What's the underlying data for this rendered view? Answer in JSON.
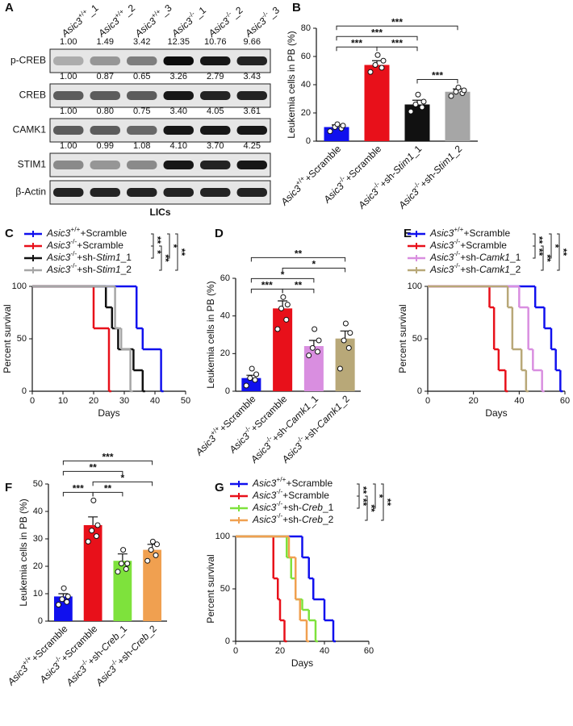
{
  "chart_data": [
    {
      "type": "blot",
      "panel": "A",
      "lanes": [
        "Asic3+/+_1",
        "Asic3+/+_2",
        "Asic3+/+_3",
        "Asic3-/-_1",
        "Asic3-/-_2",
        "Asic3-/-_3"
      ],
      "quant_rows": [
        [
          "1.00",
          "1.49",
          "3.42",
          "12.35",
          "10.76",
          "9.66"
        ],
        [
          "1.00",
          "0.87",
          "0.65",
          "3.26",
          "2.79",
          "3.43"
        ],
        [
          "1.00",
          "0.80",
          "0.75",
          "3.40",
          "4.05",
          "3.61"
        ],
        [
          "1.00",
          "0.99",
          "1.08",
          "4.10",
          "3.70",
          "4.25"
        ]
      ],
      "bands": [
        "p-CREB",
        "CREB",
        "CAMK1",
        "STIM1",
        "β-Actin"
      ],
      "xlabel": "LICs"
    },
    {
      "type": "bar",
      "panel": "B",
      "ylabel": "Leukemia cells in PB (%)",
      "categories": [
        "Asic3+/++Scramble",
        "Asic3-/-+Scramble",
        "Asic3-/-+sh-Stim1_1",
        "Asic3-/-+sh-Stim1_2"
      ],
      "values": [
        10,
        54,
        26,
        35
      ],
      "errors": [
        1.5,
        3,
        3,
        2
      ],
      "colors": [
        "#1010ee",
        "#e8101a",
        "#111111",
        "#a6a6a6"
      ],
      "points": [
        [
          7,
          9,
          10,
          11,
          12
        ],
        [
          49,
          52,
          54,
          57,
          61
        ],
        [
          21,
          24,
          26,
          28,
          33
        ],
        [
          32,
          34,
          35,
          36,
          38
        ]
      ],
      "ylim": [
        0,
        80
      ],
      "yticks": [
        0,
        20,
        40,
        60,
        80
      ],
      "comparisons": [
        {
          "pair": [
            0,
            1
          ],
          "label": "***"
        },
        {
          "pair": [
            1,
            2
          ],
          "label": "***"
        },
        {
          "pair": [
            2,
            3
          ],
          "label": "***"
        },
        {
          "pair": [
            0,
            2
          ],
          "label": "***"
        },
        {
          "pair": [
            0,
            3
          ],
          "label": "***"
        }
      ]
    },
    {
      "type": "survival",
      "panel": "C",
      "xlabel": "Days",
      "ylabel": "Percent survival",
      "xlim": [
        0,
        50
      ],
      "xticks": [
        0,
        10,
        20,
        30,
        40,
        50
      ],
      "ylim": [
        0,
        100
      ],
      "yticks": [
        0,
        50,
        100
      ],
      "series": [
        {
          "name": "Asic3+/++Scramble",
          "color": "#1010ee",
          "x": [
            0,
            34,
            36,
            42
          ],
          "values": [
            100,
            60,
            40,
            0
          ]
        },
        {
          "name": "Asic3-/-+Scramble",
          "color": "#e8101a",
          "x": [
            0,
            20,
            25
          ],
          "values": [
            100,
            60,
            0
          ]
        },
        {
          "name": "Asic3-/-+sh-Stim1_1",
          "color": "#111111",
          "x": [
            0,
            24,
            26,
            28,
            33,
            36
          ],
          "values": [
            100,
            80,
            60,
            40,
            20,
            0
          ]
        },
        {
          "name": "Asic3-/-+sh-Stim1_2",
          "color": "#a6a6a6",
          "x": [
            0,
            27,
            29,
            32
          ],
          "values": [
            100,
            60,
            40,
            0
          ]
        }
      ],
      "comparisons": [
        {
          "pair": [
            0,
            1
          ],
          "label": "**"
        },
        {
          "pair": [
            1,
            2
          ],
          "label": "*"
        },
        {
          "pair": [
            1,
            3
          ],
          "label": "**"
        },
        {
          "pair": [
            0,
            2
          ],
          "label": "*"
        },
        {
          "pair": [
            0,
            3
          ],
          "label": "**"
        }
      ]
    },
    {
      "type": "bar",
      "panel": "D",
      "ylabel": "Leukemia cells in PB (%)",
      "categories": [
        "Asic3+/++Scramble",
        "Asic3-/-+Scramble",
        "Asic3-/-+sh-Camk1_1",
        "Asic3-/-+sh-Camk1_2"
      ],
      "values": [
        7,
        44,
        24,
        28
      ],
      "errors": [
        1.5,
        4,
        3,
        4
      ],
      "colors": [
        "#1010ee",
        "#e8101a",
        "#d98ee0",
        "#b8a878"
      ],
      "points": [
        [
          3,
          6,
          7,
          9,
          12
        ],
        [
          33,
          38,
          44,
          46,
          50
        ],
        [
          19,
          21,
          23,
          27,
          33
        ],
        [
          12,
          23,
          27,
          31,
          36
        ]
      ],
      "ylim": [
        0,
        60
      ],
      "yticks": [
        0,
        20,
        40,
        60
      ],
      "comparisons": [
        {
          "pair": [
            0,
            1
          ],
          "label": "***"
        },
        {
          "pair": [
            1,
            2
          ],
          "label": "**"
        },
        {
          "pair": [
            0,
            2
          ],
          "label": "*"
        },
        {
          "pair": [
            1,
            3
          ],
          "label": "*"
        },
        {
          "pair": [
            0,
            3
          ],
          "label": "**"
        }
      ]
    },
    {
      "type": "survival",
      "panel": "E",
      "xlabel": "Days",
      "ylabel": "Percent survival",
      "xlim": [
        0,
        60
      ],
      "xticks": [
        0,
        20,
        40,
        60
      ],
      "ylim": [
        0,
        100
      ],
      "yticks": [
        0,
        50,
        100
      ],
      "series": [
        {
          "name": "Asic3+/++Scramble",
          "color": "#1010ee",
          "x": [
            0,
            47,
            51,
            54,
            56,
            58
          ],
          "values": [
            100,
            80,
            60,
            40,
            20,
            0
          ]
        },
        {
          "name": "Asic3-/-+Scramble",
          "color": "#e8101a",
          "x": [
            0,
            27,
            29,
            31,
            34
          ],
          "values": [
            100,
            80,
            40,
            20,
            0
          ]
        },
        {
          "name": "Asic3-/-+sh-Camk1_1",
          "color": "#d98ee0",
          "x": [
            0,
            40,
            44,
            46,
            50
          ],
          "values": [
            100,
            80,
            40,
            20,
            0
          ]
        },
        {
          "name": "Asic3-/-+sh-Camk1_2",
          "color": "#b8a878",
          "x": [
            0,
            35,
            37,
            41,
            43
          ],
          "values": [
            100,
            80,
            40,
            20,
            0
          ]
        }
      ],
      "comparisons": [
        {
          "pair": [
            0,
            1
          ],
          "label": "**"
        },
        {
          "pair": [
            1,
            2
          ],
          "label": "**"
        },
        {
          "pair": [
            1,
            3
          ],
          "label": "**"
        },
        {
          "pair": [
            0,
            2
          ],
          "label": "*"
        },
        {
          "pair": [
            0,
            3
          ],
          "label": "**"
        }
      ]
    },
    {
      "type": "bar",
      "panel": "F",
      "ylabel": "Leukemia cells in PB (%)",
      "categories": [
        "Asic3+/++Scramble",
        "Asic3-/-+Scramble",
        "Asic3-/-+sh-Creb_1",
        "Asic3-/-+sh-Creb_2"
      ],
      "values": [
        9,
        35,
        22,
        26
      ],
      "errors": [
        1,
        3,
        2.5,
        2
      ],
      "colors": [
        "#1010ee",
        "#e8101a",
        "#7ee23c",
        "#f0a050"
      ],
      "points": [
        [
          6,
          7,
          8,
          9,
          12
        ],
        [
          29,
          31,
          33,
          35,
          44
        ],
        [
          18,
          19,
          21,
          21,
          26
        ],
        [
          22,
          24,
          26,
          28,
          29
        ]
      ],
      "ylim": [
        0,
        50
      ],
      "yticks": [
        0,
        10,
        20,
        30,
        40,
        50
      ],
      "comparisons": [
        {
          "pair": [
            0,
            1
          ],
          "label": "***"
        },
        {
          "pair": [
            1,
            2
          ],
          "label": "**"
        },
        {
          "pair": [
            1,
            3
          ],
          "label": "*"
        },
        {
          "pair": [
            0,
            2
          ],
          "label": "**"
        },
        {
          "pair": [
            0,
            3
          ],
          "label": "***"
        }
      ]
    },
    {
      "type": "survival",
      "panel": "G",
      "xlabel": "Days",
      "ylabel": "Percent survival",
      "xlim": [
        0,
        60
      ],
      "xticks": [
        0,
        20,
        40,
        60
      ],
      "ylim": [
        0,
        100
      ],
      "yticks": [
        0,
        50,
        100
      ],
      "series": [
        {
          "name": "Asic3+/++Scramble",
          "color": "#1010ee",
          "x": [
            0,
            30,
            33,
            35,
            40,
            44
          ],
          "values": [
            100,
            80,
            60,
            40,
            20,
            0
          ]
        },
        {
          "name": "Asic3-/-+Scramble",
          "color": "#e8101a",
          "x": [
            0,
            17,
            19,
            20,
            22
          ],
          "values": [
            100,
            60,
            40,
            20,
            0
          ]
        },
        {
          "name": "Asic3-/-+sh-Creb_1",
          "color": "#7ee23c",
          "x": [
            0,
            23,
            25,
            27,
            30,
            33,
            36
          ],
          "values": [
            100,
            80,
            60,
            40,
            30,
            20,
            0
          ]
        },
        {
          "name": "Asic3-/-+sh-Creb_2",
          "color": "#f0a050",
          "x": [
            0,
            24,
            27,
            29,
            32
          ],
          "values": [
            100,
            80,
            40,
            20,
            0
          ]
        }
      ],
      "comparisons": [
        {
          "pair": [
            0,
            1
          ],
          "label": "**"
        },
        {
          "pair": [
            1,
            2
          ],
          "label": "**"
        },
        {
          "pair": [
            1,
            3
          ],
          "label": "**"
        },
        {
          "pair": [
            0,
            2
          ],
          "label": "*"
        },
        {
          "pair": [
            0,
            3
          ],
          "label": "**"
        }
      ]
    }
  ]
}
